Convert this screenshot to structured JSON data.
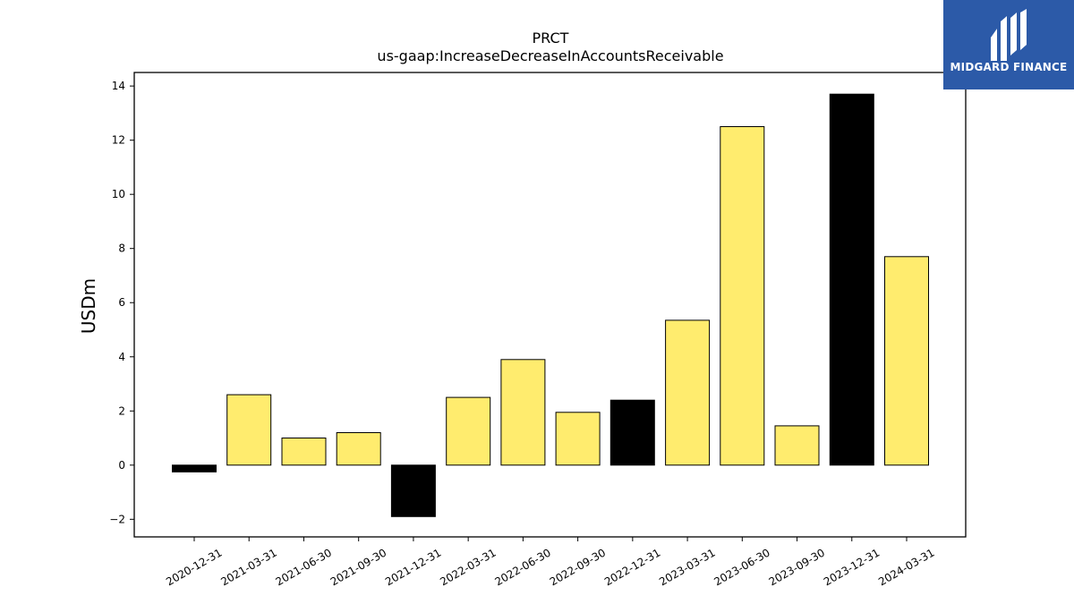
{
  "chart_data": {
    "type": "bar",
    "title": "PRCT",
    "subtitle": "us-gaap:IncreaseDecreaseInAccountsReceivable",
    "xlabel": "",
    "ylabel": "USDm",
    "ylim": [
      -2.65,
      14.5
    ],
    "yticks": [
      -2,
      0,
      2,
      4,
      6,
      8,
      10,
      12,
      14
    ],
    "ytick_labels": [
      "−2",
      "0",
      "2",
      "4",
      "6",
      "8",
      "10",
      "12",
      "14"
    ],
    "grid": false,
    "categories": [
      "2020-12-31",
      "2021-03-31",
      "2021-06-30",
      "2021-09-30",
      "2021-12-31",
      "2022-03-31",
      "2022-06-30",
      "2022-09-30",
      "2022-12-31",
      "2023-03-31",
      "2023-06-30",
      "2023-09-30",
      "2023-12-31",
      "2024-03-31"
    ],
    "values": [
      -0.25,
      2.6,
      1.0,
      1.2,
      -1.9,
      2.5,
      3.9,
      1.95,
      2.4,
      5.35,
      12.5,
      1.45,
      13.7,
      7.7
    ],
    "bar_colors": [
      "#000000",
      "#ffec6e",
      "#ffec6e",
      "#ffec6e",
      "#000000",
      "#ffec6e",
      "#ffec6e",
      "#ffec6e",
      "#000000",
      "#ffec6e",
      "#ffec6e",
      "#ffec6e",
      "#000000",
      "#ffec6e"
    ]
  },
  "logo": {
    "text": "MIDGARD FINANCE",
    "background": "#2c5aa8"
  }
}
